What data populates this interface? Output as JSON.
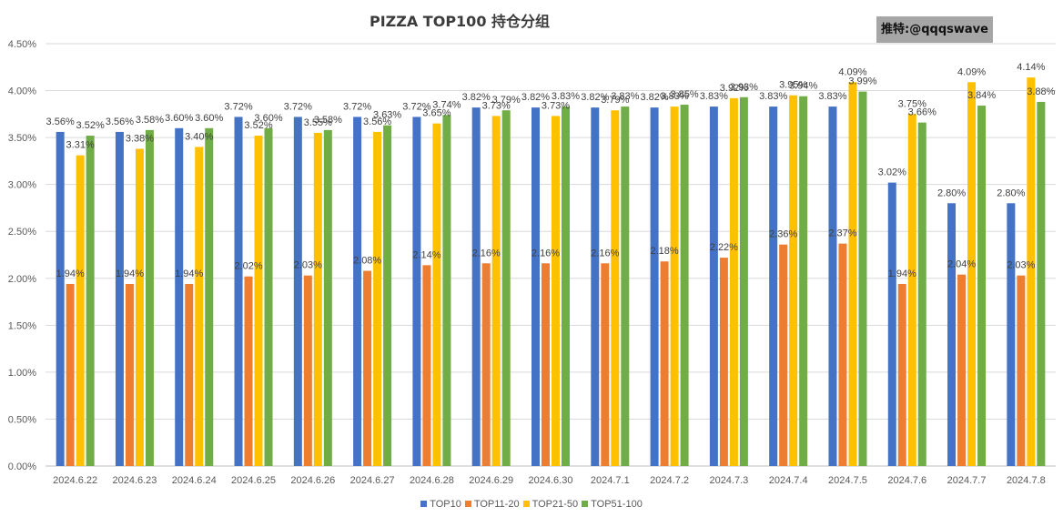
{
  "watermark": "推特:@qqqswave",
  "chart_data": {
    "type": "bar",
    "title": "PIZZA TOP100 持仓分组",
    "categories": [
      "2024.6.22",
      "2024.6.23",
      "2024.6.24",
      "2024.6.25",
      "2024.6.26",
      "2024.6.27",
      "2024.6.28",
      "2024.6.29",
      "2024.6.30",
      "2024.7.1",
      "2024.7.2",
      "2024.7.3",
      "2024.7.4",
      "2024.7.5",
      "2024.7.6",
      "2024.7.7",
      "2024.7.8"
    ],
    "series": [
      {
        "name": "TOP10",
        "color": "#4472c4",
        "values": [
          3.56,
          3.56,
          3.6,
          3.72,
          3.72,
          3.72,
          3.72,
          3.82,
          3.82,
          3.82,
          3.82,
          3.83,
          3.83,
          3.83,
          3.02,
          2.8,
          2.8
        ],
        "labels": [
          "3.56%",
          "3.56%",
          "3.60%",
          "3.72%",
          "3.72%",
          "3.72%",
          "3.72%",
          "3.82%",
          "3.82%",
          "3.82%",
          "3.82%",
          "3.83%",
          "3.83%",
          "3.83%",
          "3.02%",
          "2.80%",
          "2.80%"
        ]
      },
      {
        "name": "TOP11-20",
        "color": "#ed7d31",
        "values": [
          1.94,
          1.94,
          1.94,
          2.02,
          2.03,
          2.08,
          2.14,
          2.16,
          2.16,
          2.16,
          2.18,
          2.22,
          2.36,
          2.37,
          1.94,
          2.04,
          2.03
        ],
        "labels": [
          "1.94%",
          "1.94%",
          "1.94%",
          "2.02%",
          "2.03%",
          "2.08%",
          "2.14%",
          "2.16%",
          "2.16%",
          "2.16%",
          "2.18%",
          "2.22%",
          "2.36%",
          "2.37%",
          "1.94%",
          "2.04%",
          "2.03%"
        ]
      },
      {
        "name": "TOP21-50",
        "color": "#ffc000",
        "values": [
          3.31,
          3.38,
          3.4,
          3.52,
          3.55,
          3.56,
          3.65,
          3.73,
          3.73,
          3.79,
          3.83,
          3.92,
          3.95,
          4.09,
          3.75,
          4.09,
          4.14
        ],
        "labels": [
          "3.31%",
          "3.38%",
          "3.40%",
          "3.52%",
          "3.55%",
          "3.56%",
          "3.65%",
          "3.73%",
          "3.73%",
          "3.79%",
          "3.83%",
          "3.92%",
          "3.95%",
          "4.09%",
          "3.75%",
          "4.09%",
          "4.14%"
        ]
      },
      {
        "name": "TOP51-100",
        "color": "#70ad47",
        "values": [
          3.52,
          3.58,
          3.6,
          3.6,
          3.58,
          3.63,
          3.74,
          3.79,
          3.83,
          3.83,
          3.85,
          3.93,
          3.94,
          3.99,
          3.66,
          3.84,
          3.88
        ],
        "labels": [
          "3.52%",
          "3.58%",
          "3.60%",
          "3.60%",
          "3.58%",
          "3.63%",
          "3.74%",
          "3.79%",
          "3.83%",
          "3.83%",
          "3.85%",
          "3.93%",
          "3.94%",
          "3.99%",
          "3.66%",
          "3.84%",
          "3.88%"
        ]
      }
    ],
    "ylim": [
      0,
      4.5
    ],
    "yticks": [
      0,
      0.5,
      1.0,
      1.5,
      2.0,
      2.5,
      3.0,
      3.5,
      4.0,
      4.5
    ],
    "ytick_labels": [
      "0.00%",
      "0.50%",
      "1.00%",
      "1.50%",
      "2.00%",
      "2.50%",
      "3.00%",
      "3.50%",
      "4.00%",
      "4.50%"
    ],
    "grid": true,
    "legend": "bottom"
  }
}
